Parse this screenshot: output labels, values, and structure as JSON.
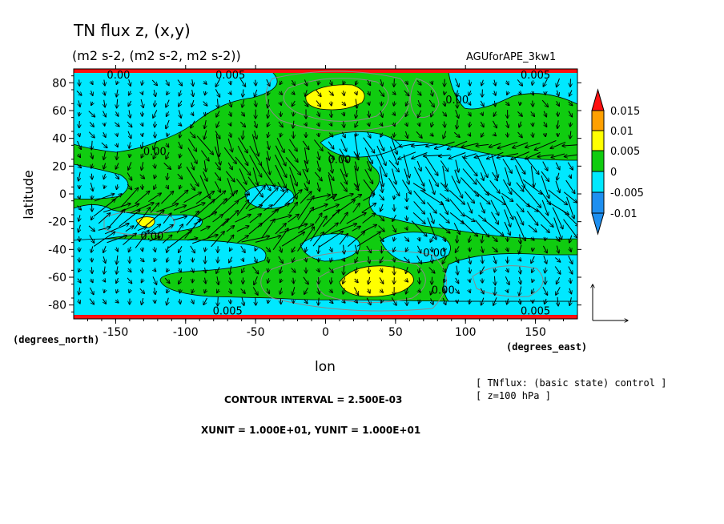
{
  "title": "TN flux z, (x,y)",
  "subtitle": "(m2 s-2, (m2 s-2, m2 s-2))",
  "dataset": "AGUforAPE_3kw1",
  "x_unit_label": "(degrees_east)",
  "y_unit_label": "(degrees_north)",
  "footer": {
    "contour_interval": "CONTOUR INTERVAL = 2.500E-03",
    "units": "XUNIT = 1.000E+01, YUNIT = 1.000E+01",
    "note1": "[ TNflux: (basic state) control ]",
    "note2": "[ z=100 hPa ]"
  },
  "colors": {
    "c_lt_m0075": "#1e8ff0",
    "c_m0075_m0025": "#00e8ff",
    "c_m0025_0025": "#10cc10",
    "c_0025_0075": "#ffff00",
    "c_0075_0125": "#ffa000",
    "c_gt_0125": "#ff1010",
    "contour": "#8a8a8a",
    "vector": "#000000"
  },
  "chart_data": {
    "type": "heatmap",
    "title": "TN flux z, (x,y)",
    "xlabel": "lon",
    "ylabel": "latitude",
    "xlim": [
      -180,
      180
    ],
    "ylim": [
      -90,
      90
    ],
    "x_ticks": [
      -150,
      -100,
      -50,
      0,
      50,
      100,
      150
    ],
    "y_ticks": [
      80,
      60,
      40,
      20,
      0,
      -20,
      -40,
      -60,
      -80
    ],
    "x_tick_labels": [
      "-150",
      "-100",
      "-50",
      "0",
      "50",
      "100",
      "150"
    ],
    "y_tick_labels": [
      "80",
      "60",
      "40",
      "20",
      "0",
      "-20",
      "-40",
      "-60",
      "-80"
    ],
    "colorbar": {
      "levels": [
        -0.01,
        -0.005,
        0,
        0.005,
        0.01,
        0.015
      ],
      "labels": [
        "-0.01",
        "-0.005",
        "0",
        "0.005",
        "0.01",
        "0.015"
      ]
    },
    "contour_labels": [
      {
        "text": "0.00",
        "lon": -148,
        "lat": 86
      },
      {
        "text": "0.005",
        "lon": -68,
        "lat": 86
      },
      {
        "text": "0.005",
        "lon": 150,
        "lat": 86
      },
      {
        "text": "0.00",
        "lon": -122,
        "lat": 31
      },
      {
        "text": "0.00",
        "lon": 10,
        "lat": 25
      },
      {
        "text": "0.00",
        "lon": 94,
        "lat": 68
      },
      {
        "text": "0.00",
        "lon": -124,
        "lat": -30
      },
      {
        "text": "0.00",
        "lon": 78,
        "lat": -42
      },
      {
        "text": "0.00",
        "lon": 84,
        "lat": -69
      },
      {
        "text": "0.005",
        "lon": -70,
        "lat": -84
      },
      {
        "text": "0.005",
        "lon": 150,
        "lat": -84
      }
    ],
    "regions": [
      {
        "value": "0 to 0.005",
        "lon": [
          -60,
          160
        ],
        "lat": [
          -60,
          70
        ],
        "note": "green background"
      },
      {
        "value": "-0.005 to 0",
        "lon": [
          -180,
          -110
        ],
        "lat": [
          50,
          85
        ]
      },
      {
        "value": "-0.005 to 0",
        "lon": [
          60,
          180
        ],
        "lat": [
          -30,
          30
        ]
      },
      {
        "value": "-0.005 to 0",
        "lon": [
          -180,
          -20
        ],
        "lat": [
          -80,
          -45
        ]
      },
      {
        "value": "0.005 to 0.01",
        "lon": [
          -15,
          30
        ],
        "lat": [
          60,
          75
        ]
      },
      {
        "value": "0.005 to 0.01",
        "lon": [
          10,
          60
        ],
        "lat": [
          -68,
          -52
        ]
      },
      {
        "value": "above 0.015",
        "lon": [
          -180,
          180
        ],
        "lat": [
          87,
          90
        ]
      },
      {
        "value": "above 0.015",
        "lon": [
          -180,
          180
        ],
        "lat": [
          -90,
          -87
        ]
      }
    ]
  }
}
